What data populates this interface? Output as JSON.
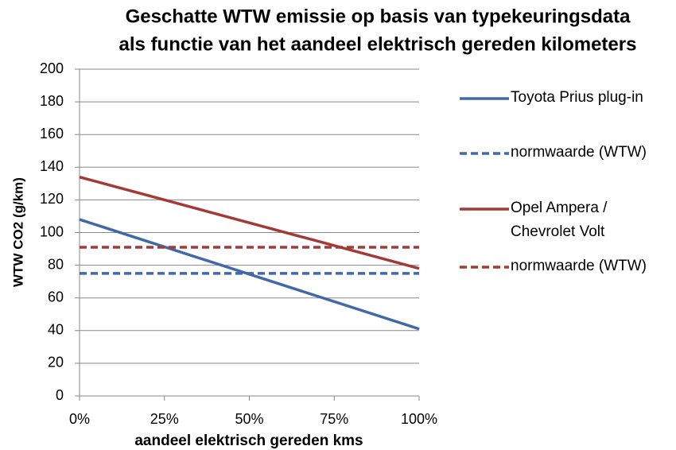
{
  "chart_data": {
    "type": "line",
    "title": [
      "Geschatte WTW emissie op basis van typekeuringsdata",
      "als functie van het aandeel elektrisch gereden kilometers"
    ],
    "x_label": "aandeel elektrisch gereden kms",
    "y_label": "WTW CO2 (g/km)",
    "x": [
      0,
      100
    ],
    "xlim": [
      0,
      100
    ],
    "xticks": [
      {
        "value": 0,
        "label": "0%"
      },
      {
        "value": 25,
        "label": "25%"
      },
      {
        "value": 50,
        "label": "50%"
      },
      {
        "value": 75,
        "label": "75%"
      },
      {
        "value": 100,
        "label": "100%"
      }
    ],
    "ylim": [
      0,
      200
    ],
    "yticks": [
      0,
      20,
      40,
      60,
      80,
      100,
      120,
      140,
      160,
      180,
      200
    ],
    "grid": true,
    "legend": "right",
    "series": [
      {
        "name": "Toyota Prius plug-in",
        "color": "#4169a8",
        "dashed": false,
        "values": [
          108,
          41
        ]
      },
      {
        "name": "normwaarde (WTW)",
        "color": "#4169a8",
        "dashed": true,
        "values": [
          75,
          75
        ]
      },
      {
        "name": "Opel Ampera / Chevrolet Volt",
        "color": "#a33a36",
        "dashed": false,
        "values": [
          134,
          78
        ]
      },
      {
        "name": "normwaarde (WTW)",
        "color": "#a33a36",
        "dashed": true,
        "values": [
          91,
          91
        ]
      }
    ]
  }
}
